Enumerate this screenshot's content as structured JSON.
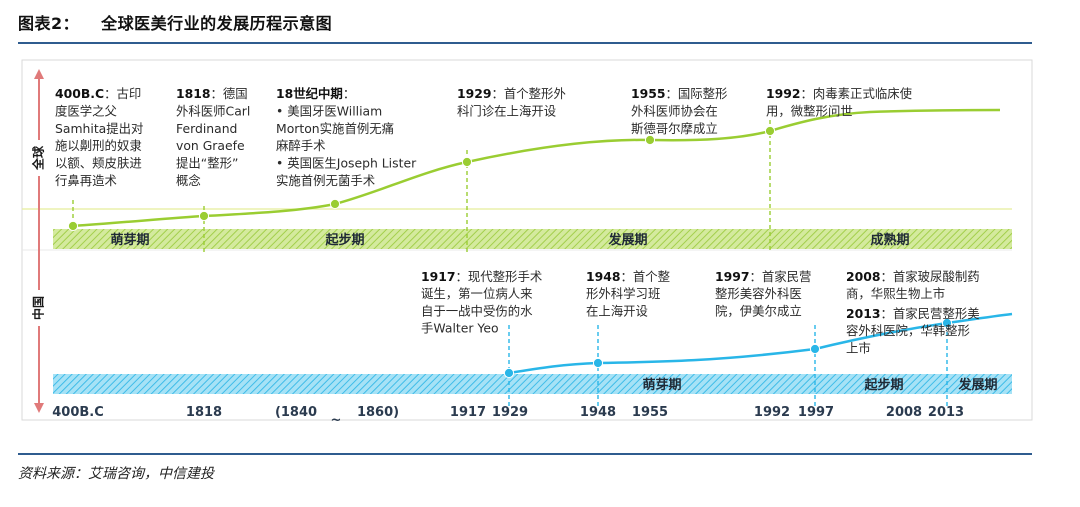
{
  "header": {
    "figure_number": "图表2：",
    "title": "全球医美行业的发展历程示意图"
  },
  "footer": {
    "source": "资料来源：艾瑞咨询，中信建投"
  },
  "colors": {
    "global_curve": "#9acd32",
    "china_curve": "#29b6e8",
    "axis_arrow": "#e07a7a",
    "rule": "#2f5c8f",
    "global_band": "#b5d96a",
    "china_band": "#5cc7ec"
  },
  "chart_data": {
    "type": "timeline",
    "sides": {
      "global": "全球",
      "china": "中国"
    },
    "x_ticks": [
      "400B.C",
      "1818",
      "(1840",
      "~",
      "1860)",
      "1917",
      "1929",
      "1948",
      "1955",
      "1992",
      "1997",
      "2008",
      "2013"
    ],
    "global": {
      "stages": [
        "萌芽期",
        "起步期",
        "发展期",
        "成熟期"
      ],
      "events": [
        {
          "year": "400B.C",
          "lines": [
            "：古印",
            "度医学之父",
            "Samhita提出对",
            "施以劓刑的奴隶",
            "以额、颊皮肤进",
            "行鼻再造术"
          ]
        },
        {
          "year": "1818",
          "lines": [
            "：德国",
            "外科医师Carl",
            "Ferdinand",
            "von Graefe",
            "提出“整形”",
            "概念"
          ]
        },
        {
          "year": "18世纪中期",
          "lines": [
            "：",
            "•  美国牙医William",
            "Morton实施首例无痛",
            "麻醉手术",
            "•  英国医生Joseph Lister",
            "实施首例无菌手术"
          ]
        },
        {
          "year": "1929",
          "lines": [
            "：首个整形外",
            "科门诊在上海开设"
          ]
        },
        {
          "year": "1955",
          "lines": [
            "：国际整形",
            "外科医师协会在",
            "斯德哥尔摩成立"
          ]
        },
        {
          "year": "1992",
          "lines": [
            "：肉毒素正式临床使",
            "用，微整形问世"
          ]
        }
      ]
    },
    "china": {
      "stages": [
        "萌芽期",
        "起步期",
        "发展期"
      ],
      "events": [
        {
          "year": "1917",
          "lines": [
            "：现代整形手术",
            "诞生，第一位病人来",
            "自于一战中受伤的水",
            "手Walter Yeo"
          ]
        },
        {
          "year": "1948",
          "lines": [
            "：首个整",
            "形外科学习班",
            "在上海开设"
          ]
        },
        {
          "year": "1997",
          "lines": [
            "：首家民营",
            "整形美容外科医",
            "院，伊美尔成立"
          ]
        },
        {
          "year": "2008",
          "lines": [
            "：首家玻尿酸制药",
            "商，华熙生物上市"
          ]
        },
        {
          "year": "2013",
          "lines": [
            "：首家民营整形美",
            "容外科医院，华韩整形",
            "上市"
          ]
        }
      ]
    }
  }
}
